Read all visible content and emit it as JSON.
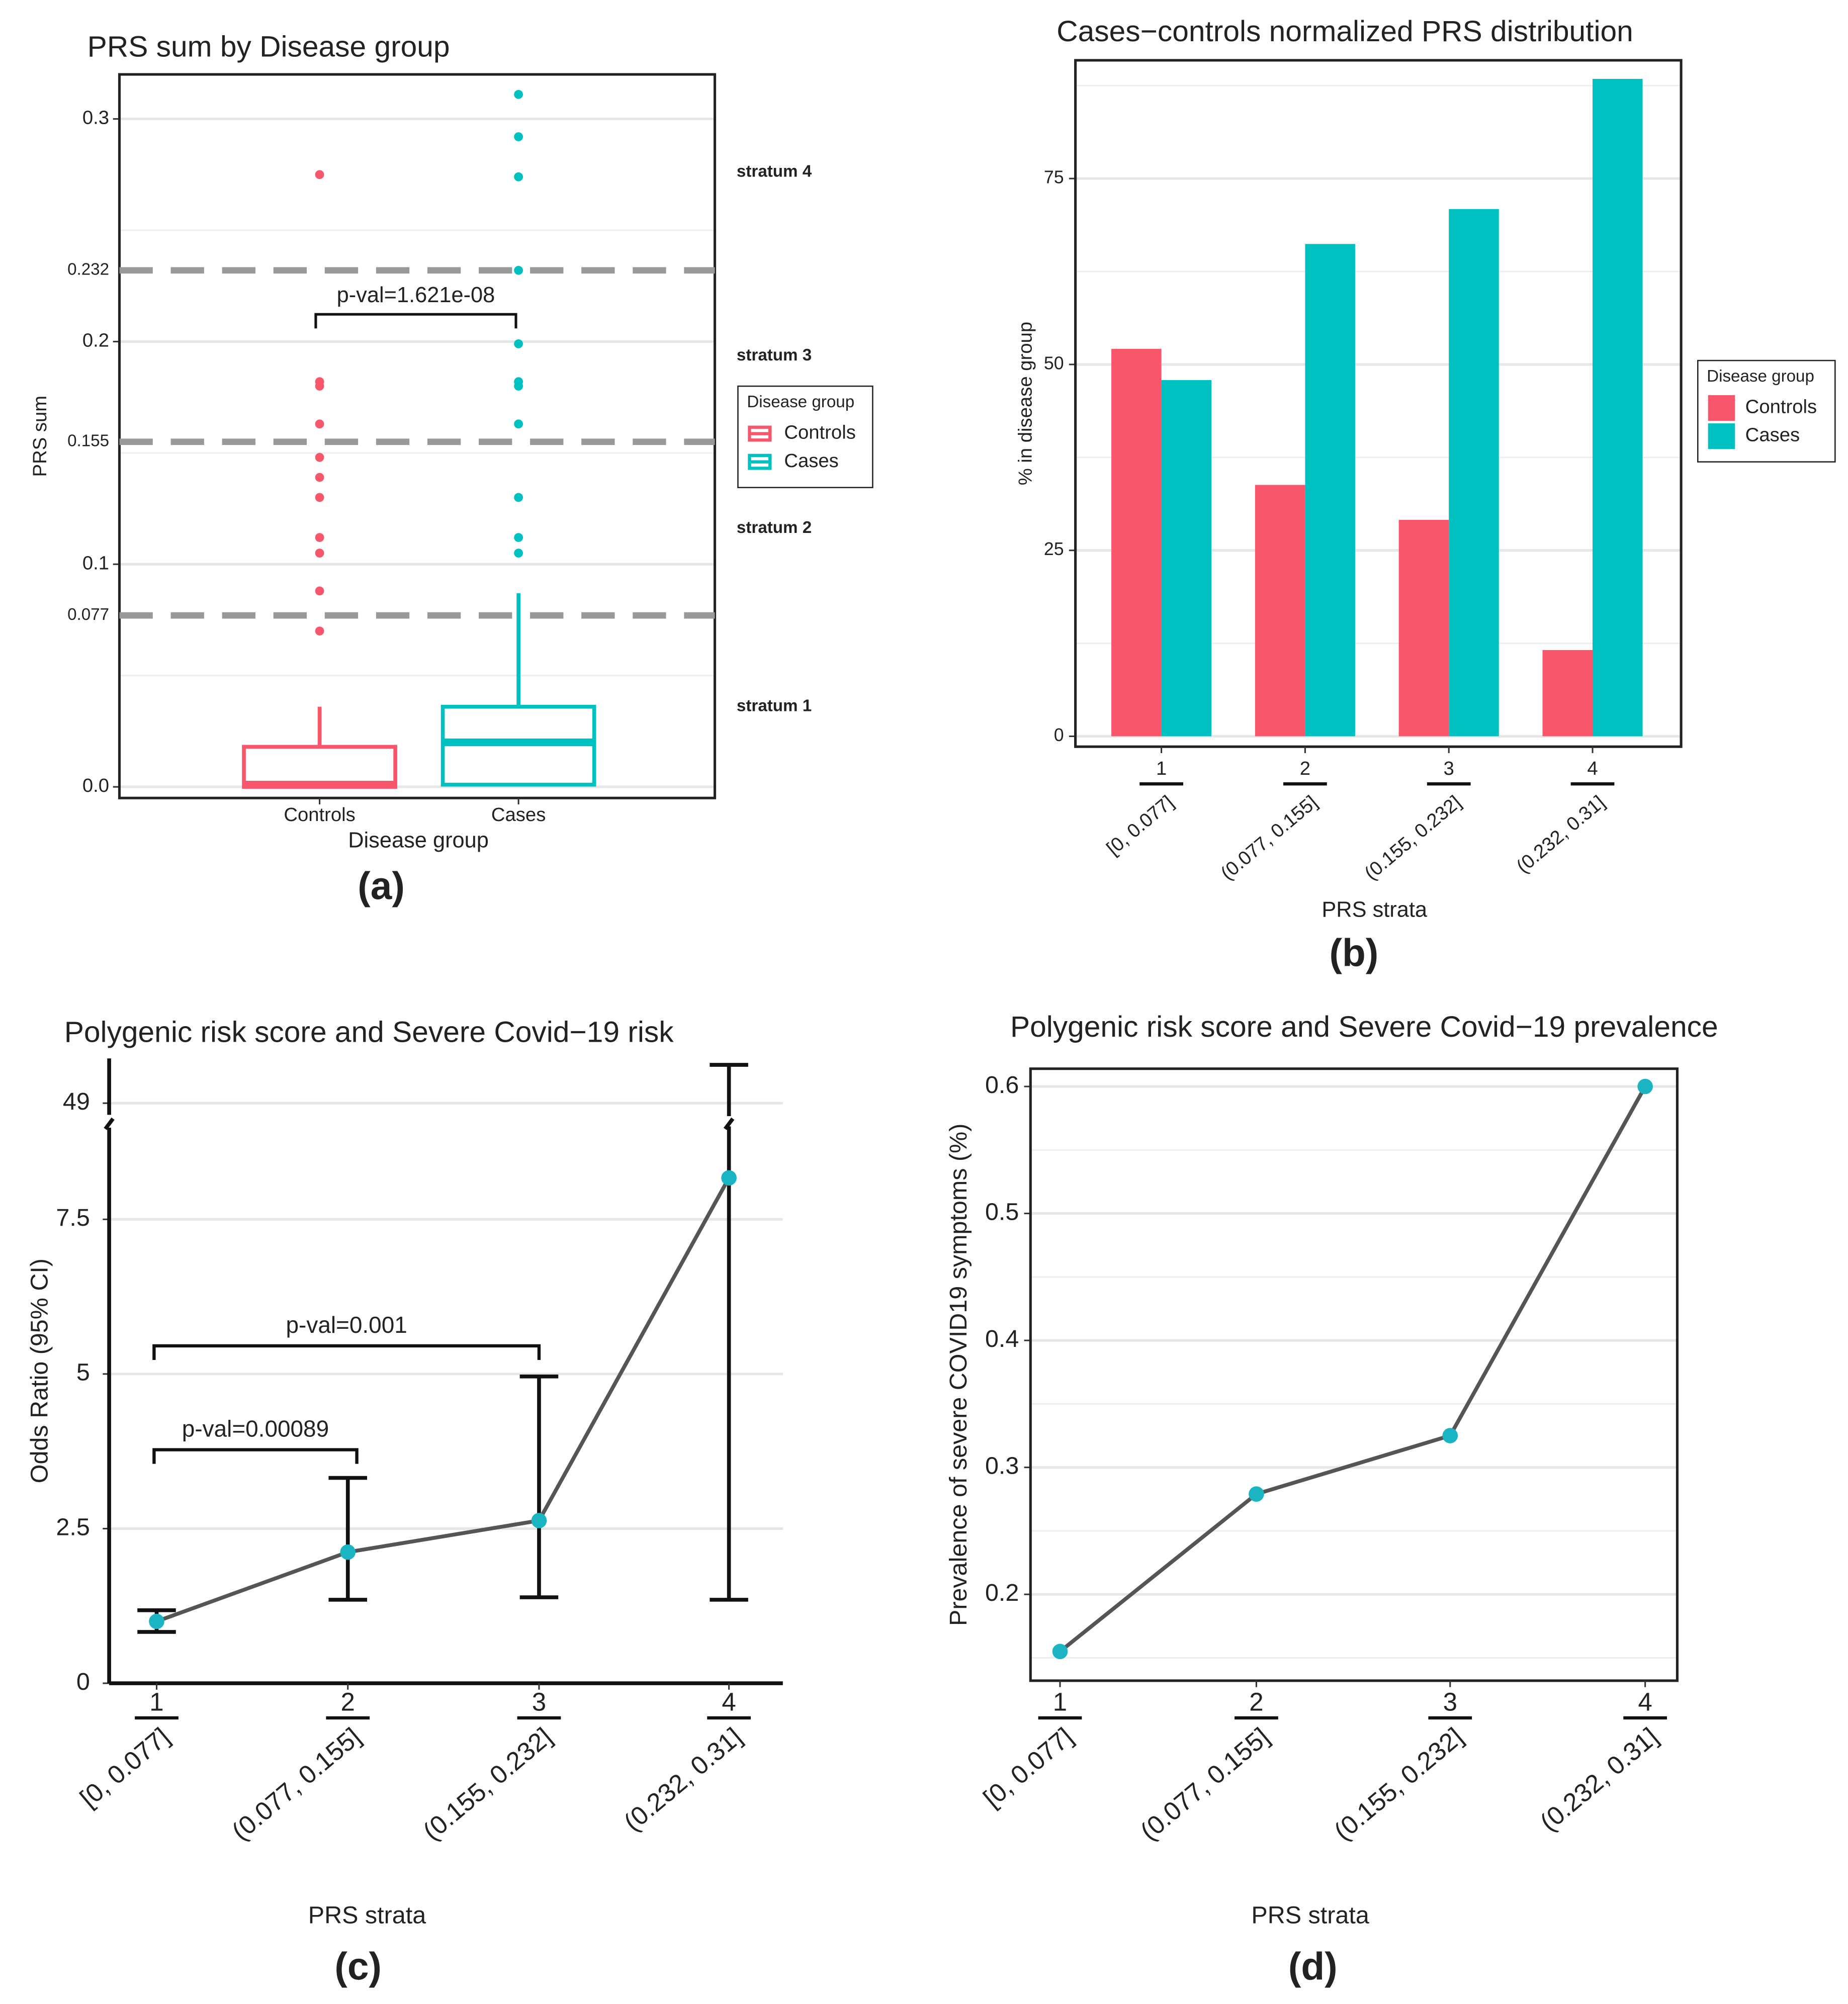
{
  "chart_data": [
    {
      "type": "box",
      "label": "(a)",
      "title": "PRS sum by Disease group",
      "xlabel": "Disease group",
      "ylabel": "PRS sum",
      "categories": [
        "Controls",
        "Cases"
      ],
      "ylim": [
        -0.005,
        0.32
      ],
      "yticks": [
        {
          "value": 0,
          "label": "0.0"
        },
        0.1,
        0.2,
        0.3
      ],
      "grid": true,
      "minor_grid": true,
      "frame": true,
      "hlines": [
        0.077,
        0.155,
        0.232
      ],
      "hline_color": "#999999",
      "annotations": [
        "stratum 1",
        "stratum 2",
        "stratum 3",
        "stratum 4"
      ],
      "comparison": "p-val=1.621e-08",
      "legend": {
        "title": "Disease group",
        "position": "right"
      },
      "series": [
        {
          "name": "Controls",
          "color": "#f8566a",
          "min": 0,
          "q1": 0,
          "median": 0.001,
          "q3": 0.018,
          "max": 0.036,
          "outliers": [
            0.275,
            0.182,
            0.18,
            0.163,
            0.148,
            0.139,
            0.13,
            0.112,
            0.105,
            0.088,
            0.07
          ]
        },
        {
          "name": "Cases",
          "color": "#00c1c1",
          "min": 0.001,
          "q1": 0.001,
          "median": 0.02,
          "q3": 0.036,
          "max": 0.087,
          "outliers": [
            0.311,
            0.292,
            0.274,
            0.232,
            0.199,
            0.182,
            0.18,
            0.163,
            0.13,
            0.112,
            0.105
          ]
        }
      ]
    },
    {
      "type": "bar",
      "label": "(b)",
      "title": "Cases−controls normalized PRS distribution",
      "xlabel": "PRS strata",
      "ylabel": "% in disease group",
      "categories": [
        "1",
        "2",
        "3",
        "4"
      ],
      "category_ranges": [
        "[0, 0.077]",
        "(0.077, 0.155]",
        "(0.155, 0.232]",
        "(0.232, 0.31]"
      ],
      "ylim": [
        -1.4,
        90.9
      ],
      "yticks": [
        0,
        25,
        50,
        75
      ],
      "grid": true,
      "minor_grid": true,
      "frame": true,
      "legend": {
        "title": "Disease group",
        "position": "right"
      },
      "series": [
        {
          "name": "Controls",
          "color": "#f8566a",
          "values": [
            52.1,
            33.8,
            29.1,
            11.6
          ]
        },
        {
          "name": "Cases",
          "color": "#00c1c1",
          "values": [
            47.9,
            66.2,
            70.9,
            88.4
          ]
        }
      ]
    },
    {
      "type": "line",
      "label": "(c)",
      "title": "Polygenic risk score and Severe Covid−19 risk",
      "xlabel": "PRS strata",
      "ylabel": "Odds Ratio (95% CI)",
      "categories": [
        "1",
        "2",
        "3",
        "4"
      ],
      "category_ranges": [
        "[0, 0.077]",
        "(0.077, 0.155]",
        "(0.155, 0.232]",
        "(0.232, 0.31]"
      ],
      "ylim": [
        0,
        52.5
      ],
      "ybreak": [
        9,
        48
      ],
      "yticks": [
        0,
        2.5,
        5,
        7.5,
        49
      ],
      "grid": true,
      "minor_grid": false,
      "frame": false,
      "comparisons": [
        "p-val=0.00089",
        "p-val=0.001"
      ],
      "series": [
        {
          "color": "#1ab4c3",
          "line_color": "#555555",
          "values": [
            1,
            2.12,
            2.63,
            8.17
          ],
          "lower": [
            0.83,
            1.35,
            1.39,
            1.35
          ],
          "upper": [
            1.18,
            3.32,
            4.96,
            52
          ]
        }
      ]
    },
    {
      "type": "line",
      "label": "(d)",
      "title": "Polygenic risk score and Severe Covid−19 prevalence",
      "xlabel": "PRS strata",
      "ylabel": "Prevalence of severe COVID19 symptoms (%)",
      "categories": [
        "1",
        "2",
        "3",
        "4"
      ],
      "category_ranges": [
        "[0, 0.077]",
        "(0.077, 0.155]",
        "(0.155, 0.232]",
        "(0.232, 0.31]"
      ],
      "ylim": [
        0.132,
        0.614
      ],
      "yticks": [
        0.2,
        0.3,
        0.4,
        0.5,
        0.6
      ],
      "grid": true,
      "minor_grid": true,
      "frame": true,
      "series": [
        {
          "color": "#1ab4c3",
          "line_color": "#555555",
          "values": [
            0.155,
            0.279,
            0.325,
            0.6
          ]
        }
      ]
    }
  ]
}
